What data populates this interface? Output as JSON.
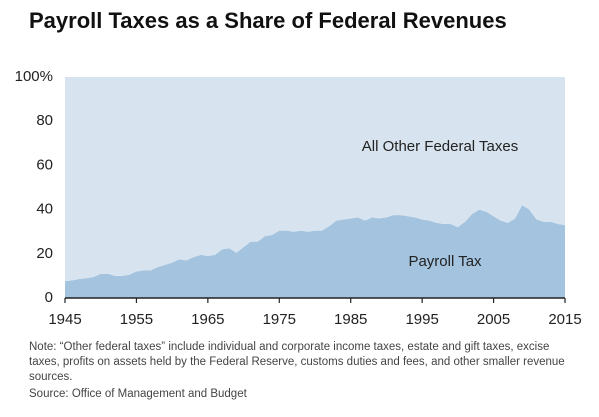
{
  "chart_data": {
    "type": "stacked_area",
    "title": "Payroll Taxes as a Share of Federal Revenues",
    "x": [
      1945,
      1946,
      1947,
      1948,
      1949,
      1950,
      1951,
      1952,
      1953,
      1954,
      1955,
      1956,
      1957,
      1958,
      1959,
      1960,
      1961,
      1962,
      1963,
      1964,
      1965,
      1966,
      1967,
      1968,
      1969,
      1970,
      1971,
      1972,
      1973,
      1974,
      1975,
      1976,
      1977,
      1978,
      1979,
      1980,
      1981,
      1982,
      1983,
      1984,
      1985,
      1986,
      1987,
      1988,
      1989,
      1990,
      1991,
      1992,
      1993,
      1994,
      1995,
      1996,
      1997,
      1998,
      1999,
      2000,
      2001,
      2002,
      2003,
      2004,
      2005,
      2006,
      2007,
      2008,
      2009,
      2010,
      2011,
      2012,
      2013,
      2014,
      2015
    ],
    "series": [
      {
        "name": "Payroll Tax",
        "color": "#a3c3df",
        "values": [
          7.6,
          8,
          8.6,
          9,
          9.5,
          11,
          11,
          10,
          10,
          10.5,
          12,
          12.5,
          12.5,
          14,
          15,
          16,
          17.5,
          17,
          18.5,
          19.5,
          19,
          19.5,
          22,
          22.5,
          20.5,
          23,
          25.5,
          25.5,
          28,
          28.5,
          30.5,
          30.5,
          30,
          30.5,
          30,
          30.5,
          30.5,
          32.5,
          35,
          35.5,
          36,
          36.5,
          35,
          36.5,
          36,
          36.5,
          37.5,
          37.5,
          37,
          36.5,
          35.5,
          35,
          34,
          33.5,
          33.5,
          32,
          34.5,
          38,
          40,
          39,
          37,
          35,
          34,
          36,
          42,
          40,
          35.5,
          34.5,
          34.5,
          33.5,
          33
        ]
      },
      {
        "name": "All Other Federal Taxes",
        "color": "#d7e4ef",
        "values": [
          92.4,
          92,
          91.4,
          91,
          90.5,
          89,
          89,
          90,
          90,
          89.5,
          88,
          87.5,
          87.5,
          86,
          85,
          84,
          82.5,
          83,
          81.5,
          80.5,
          81,
          80.5,
          78,
          77.5,
          79.5,
          77,
          74.5,
          74.5,
          72,
          71.5,
          69.5,
          69.5,
          70,
          69.5,
          70,
          69.5,
          69.5,
          67.5,
          65,
          64.5,
          64,
          63.5,
          65,
          63.5,
          64,
          63.5,
          62.5,
          62.5,
          63,
          63.5,
          64.5,
          65,
          66,
          66.5,
          66.5,
          68,
          65.5,
          62,
          60,
          61,
          63,
          65,
          66,
          64,
          58,
          60,
          64.5,
          65.5,
          65.5,
          66.5,
          67
        ]
      }
    ],
    "xlim": [
      1945,
      2015
    ],
    "xticks": [
      1945,
      1955,
      1965,
      1975,
      1985,
      1995,
      2005,
      2015
    ],
    "ylim": [
      0,
      100
    ],
    "yticks": [
      0,
      20,
      40,
      60,
      80,
      {
        "value": 100,
        "label": "100%"
      }
    ],
    "note": "Note: “Other federal taxes” include individual and corporate income taxes, estate and gift taxes, excise taxes, profits on assets held by the Federal Reserve, customs duties and fees, and other smaller revenue sources.",
    "source": "Source: Office of Management and Budget"
  }
}
